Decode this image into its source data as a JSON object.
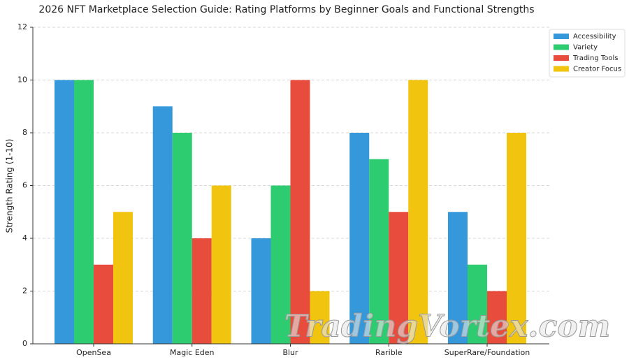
{
  "chart_data": {
    "type": "bar",
    "title": "2026 NFT Marketplace Selection Guide: Rating Platforms by Beginner Goals and Functional Strengths",
    "y_label": "Strength Rating (1-10)",
    "categories": [
      "OpenSea",
      "Magic Eden",
      "Blur",
      "Rarible",
      "SuperRare/Foundation"
    ],
    "series": [
      {
        "name": "Accessibility",
        "color": "#3498db",
        "values": [
          10,
          9,
          4,
          8,
          5
        ]
      },
      {
        "name": "Variety",
        "color": "#2ecc71",
        "values": [
          10,
          8,
          6,
          7,
          3
        ]
      },
      {
        "name": "Trading Tools",
        "color": "#e74c3c",
        "values": [
          3,
          4,
          10,
          5,
          2
        ]
      },
      {
        "name": "Creator Focus",
        "color": "#f1c40f",
        "values": [
          5,
          6,
          2,
          10,
          8
        ]
      }
    ],
    "ylim": [
      0,
      12
    ],
    "yticks": [
      0,
      2,
      4,
      6,
      8,
      10,
      12
    ],
    "grid": true,
    "legend": "upper right",
    "watermark": "TradingVortex.com"
  }
}
